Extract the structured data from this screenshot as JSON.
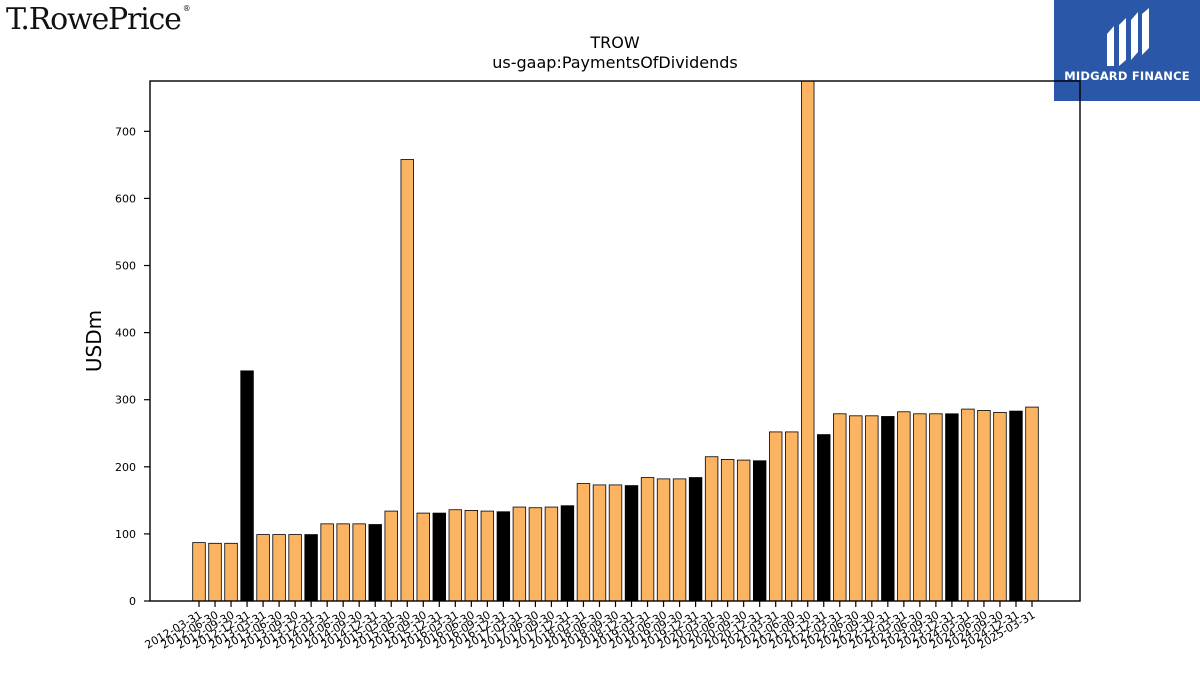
{
  "brand": {
    "left_logo_text": "T.RowePrice",
    "left_logo_mark": "®",
    "right_logo_text": "MIDGARD FINANCE"
  },
  "chart_data": {
    "type": "bar",
    "title": "TROW",
    "subtitle": "us-gaap:PaymentsOfDividends",
    "xlabel": "",
    "ylabel": "USDm",
    "ylim": [
      0,
      775
    ],
    "yticks": [
      0,
      100,
      200,
      300,
      400,
      500,
      600,
      700
    ],
    "grid": false,
    "colors": {
      "quarter": "#fdb462",
      "year_end": "#000000",
      "edge": "#000000"
    },
    "categories": [
      "2012-03-31",
      "2012-06-30",
      "2012-09-30",
      "2012-12-31",
      "2013-03-31",
      "2013-06-30",
      "2013-09-30",
      "2013-12-31",
      "2014-03-31",
      "2014-06-30",
      "2014-09-30",
      "2014-12-31",
      "2015-03-31",
      "2015-06-30",
      "2015-09-30",
      "2015-12-31",
      "2016-03-31",
      "2016-06-30",
      "2016-09-30",
      "2016-12-31",
      "2017-03-31",
      "2017-06-30",
      "2017-09-30",
      "2017-12-31",
      "2018-03-31",
      "2018-06-30",
      "2018-09-30",
      "2018-12-31",
      "2019-03-31",
      "2019-06-30",
      "2019-09-30",
      "2019-12-31",
      "2020-03-31",
      "2020-06-30",
      "2020-09-30",
      "2020-12-31",
      "2021-03-31",
      "2021-06-30",
      "2021-09-30",
      "2021-12-31",
      "2022-03-31",
      "2022-06-30",
      "2022-09-30",
      "2022-12-31",
      "2023-03-31",
      "2023-06-30",
      "2023-09-30",
      "2023-12-31",
      "2024-03-31",
      "2024-06-30",
      "2024-09-30",
      "2024-12-31",
      "2025-03-31"
    ],
    "values": [
      87,
      86,
      86,
      343,
      99,
      99,
      99,
      99,
      115,
      115,
      115,
      114,
      134,
      658,
      131,
      131,
      136,
      135,
      134,
      133,
      140,
      139,
      140,
      142,
      175,
      173,
      173,
      172,
      184,
      182,
      182,
      184,
      215,
      211,
      210,
      209,
      252,
      252,
      780,
      248,
      279,
      276,
      276,
      275,
      282,
      279,
      279,
      279,
      286,
      284,
      281,
      283,
      289
    ],
    "highlight": [
      false,
      false,
      false,
      true,
      false,
      false,
      false,
      true,
      false,
      false,
      false,
      true,
      false,
      false,
      false,
      true,
      false,
      false,
      false,
      true,
      false,
      false,
      false,
      true,
      false,
      false,
      false,
      true,
      false,
      false,
      false,
      true,
      false,
      false,
      false,
      true,
      false,
      false,
      false,
      true,
      false,
      false,
      false,
      true,
      false,
      false,
      false,
      true,
      false,
      false,
      false,
      true,
      false
    ]
  }
}
